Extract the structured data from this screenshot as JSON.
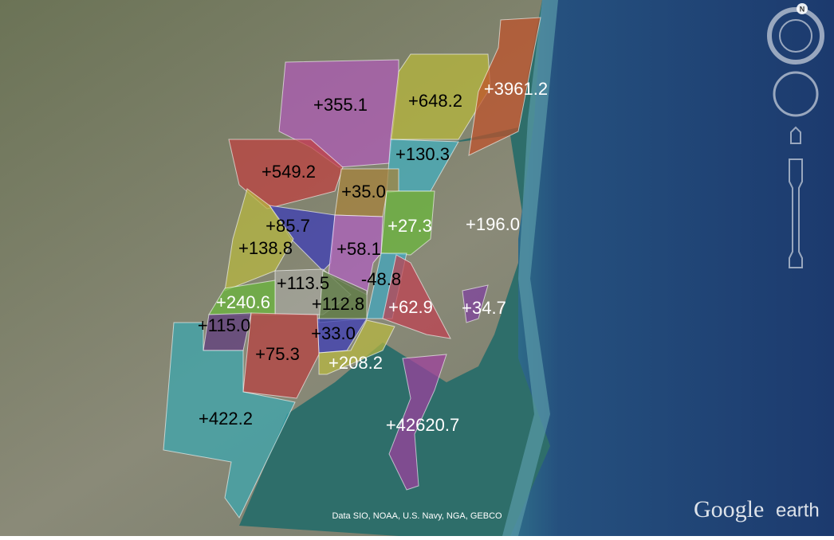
{
  "map": {
    "regions": [
      {
        "label": "+355.1"
      },
      {
        "label": "+648.2"
      },
      {
        "label": "+3961.2"
      },
      {
        "label": "+549.2"
      },
      {
        "label": "+130.3"
      },
      {
        "label": "+35.0"
      },
      {
        "label": "+27.3"
      },
      {
        "label": "+196.0"
      },
      {
        "label": "+85.7"
      },
      {
        "label": "+138.8"
      },
      {
        "label": "+58.1"
      },
      {
        "label": "-48.8"
      },
      {
        "label": "+113.5"
      },
      {
        "label": "+240.6"
      },
      {
        "label": "+112.8"
      },
      {
        "label": "+62.9"
      },
      {
        "label": "+34.7"
      },
      {
        "label": "+115.0"
      },
      {
        "label": "+33.0"
      },
      {
        "label": "+75.3"
      },
      {
        "label": "+208.2"
      },
      {
        "label": "+422.2"
      },
      {
        "label": "+42620.7"
      }
    ]
  },
  "attribution": "Data SIO, NOAA, U.S. Navy, NGA, GEBCO",
  "logo": {
    "google": "Google",
    "earth": "earth"
  },
  "compass": "N"
}
